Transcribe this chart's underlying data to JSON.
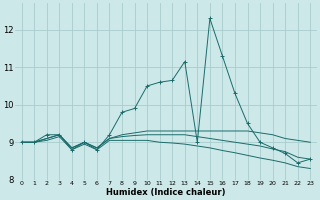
{
  "xlabel": "Humidex (Indice chaleur)",
  "bg_color": "#cce8e8",
  "grid_color": "#aacccc",
  "line_color": "#1a6b6b",
  "xlim": [
    -0.5,
    23.5
  ],
  "ylim": [
    8.0,
    12.7
  ],
  "yticks": [
    8,
    9,
    10,
    11,
    12
  ],
  "xticks": [
    0,
    1,
    2,
    3,
    4,
    5,
    6,
    7,
    8,
    9,
    10,
    11,
    12,
    13,
    14,
    15,
    16,
    17,
    18,
    19,
    20,
    21,
    22,
    23
  ],
  "series": [
    {
      "x": [
        0,
        1,
        2,
        3,
        4,
        5,
        6,
        7,
        8,
        9,
        10,
        11,
        12,
        13,
        14,
        15,
        16,
        17,
        18,
        19,
        20,
        21,
        22,
        23
      ],
      "y": [
        9.0,
        9.0,
        9.2,
        9.2,
        8.8,
        9.0,
        8.8,
        9.2,
        9.8,
        9.9,
        10.5,
        10.6,
        10.65,
        11.15,
        9.0,
        12.3,
        11.3,
        10.3,
        9.5,
        9.0,
        8.85,
        8.7,
        8.45,
        8.55
      ],
      "has_marker": true
    },
    {
      "x": [
        0,
        1,
        2,
        3,
        4,
        5,
        6,
        7,
        8,
        9,
        10,
        11,
        12,
        13,
        14,
        15,
        16,
        17,
        18,
        19,
        20,
        21,
        22,
        23
      ],
      "y": [
        9.0,
        9.0,
        9.1,
        9.2,
        8.85,
        9.0,
        8.85,
        9.1,
        9.2,
        9.25,
        9.3,
        9.3,
        9.3,
        9.3,
        9.3,
        9.3,
        9.3,
        9.3,
        9.3,
        9.25,
        9.2,
        9.1,
        9.05,
        9.0
      ],
      "has_marker": false
    },
    {
      "x": [
        0,
        1,
        2,
        3,
        4,
        5,
        6,
        7,
        8,
        9,
        10,
        11,
        12,
        13,
        14,
        15,
        16,
        17,
        18,
        19,
        20,
        21,
        22,
        23
      ],
      "y": [
        9.0,
        9.0,
        9.1,
        9.2,
        8.85,
        9.0,
        8.85,
        9.1,
        9.15,
        9.18,
        9.2,
        9.2,
        9.2,
        9.2,
        9.15,
        9.1,
        9.05,
        9.0,
        8.95,
        8.9,
        8.82,
        8.75,
        8.6,
        8.55
      ],
      "has_marker": false
    },
    {
      "x": [
        0,
        1,
        2,
        3,
        4,
        5,
        6,
        7,
        8,
        9,
        10,
        11,
        12,
        13,
        14,
        15,
        16,
        17,
        18,
        19,
        20,
        21,
        22,
        23
      ],
      "y": [
        9.0,
        9.0,
        9.05,
        9.15,
        8.8,
        8.95,
        8.8,
        9.05,
        9.05,
        9.05,
        9.05,
        9.0,
        8.98,
        8.95,
        8.9,
        8.85,
        8.78,
        8.72,
        8.65,
        8.58,
        8.52,
        8.45,
        8.35,
        8.3
      ],
      "has_marker": false
    }
  ]
}
